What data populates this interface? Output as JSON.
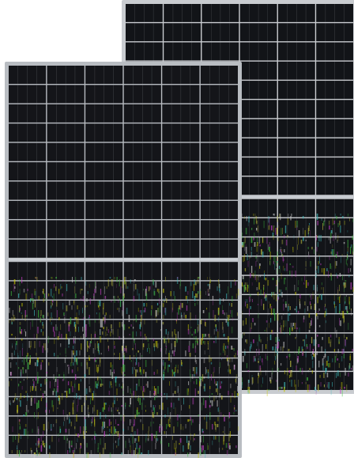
{
  "image": {
    "background": "#ffffff",
    "panels": [
      {
        "role": "back",
        "frame_color": "#c9ccd0",
        "cell_color": "#121418",
        "busbar_color": "#c7cbd1",
        "cell_columns": 6,
        "cell_rows": 20
      },
      {
        "role": "front",
        "frame_color": "#b9bdc2",
        "cell_color": "#141519",
        "busbar_color": "#d0d3d8",
        "cell_columns": 6,
        "cell_rows": 20
      }
    ],
    "artifact_colors": [
      "#c8c800",
      "#c040c0",
      "#40c0c0",
      "#c0c040",
      "#40c040",
      "#d0d0d0"
    ]
  }
}
